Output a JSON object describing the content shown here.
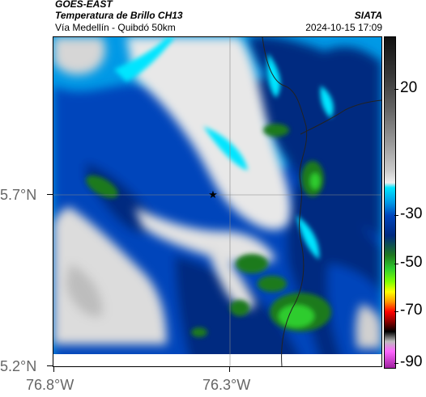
{
  "header": {
    "satellite": "GOES-EAST",
    "product": "Temperatura de Brillo CH13",
    "region": "Vía Medellín - Quibdó 50km",
    "brand": "SIATA",
    "timestamp": "2024-10-15 17:09"
  },
  "axes": {
    "lat_labels": [
      "5.7°N",
      "5.2°N"
    ],
    "lon_labels": [
      "76.8°W",
      "76.3°W"
    ]
  },
  "colorbar": {
    "ticks": [
      "20",
      "-30",
      "-50",
      "-70",
      "-90"
    ],
    "colors": [
      "#111111",
      "#3a3a3a",
      "#666666",
      "#9a9a9a",
      "#c8c8c8",
      "#eeeeee",
      "#00e5ff",
      "#0099e6",
      "#0044bb",
      "#002a80",
      "#1f7a1f",
      "#2ecc2e",
      "#7fff00",
      "#ffff00",
      "#ff9900",
      "#ff0000",
      "#8b0000",
      "#000000",
      "#bbbbbb",
      "#ff66ff",
      "#a020a0"
    ]
  },
  "map": {
    "marker_icon": "star-icon",
    "colors": {
      "cold_top": "#2ecc2e",
      "deep_blue": "#002a80",
      "mid_blue": "#0044bb",
      "light_blue": "#0099e6",
      "cyan": "#00e5ff",
      "clear": "#e6e6e6"
    }
  }
}
